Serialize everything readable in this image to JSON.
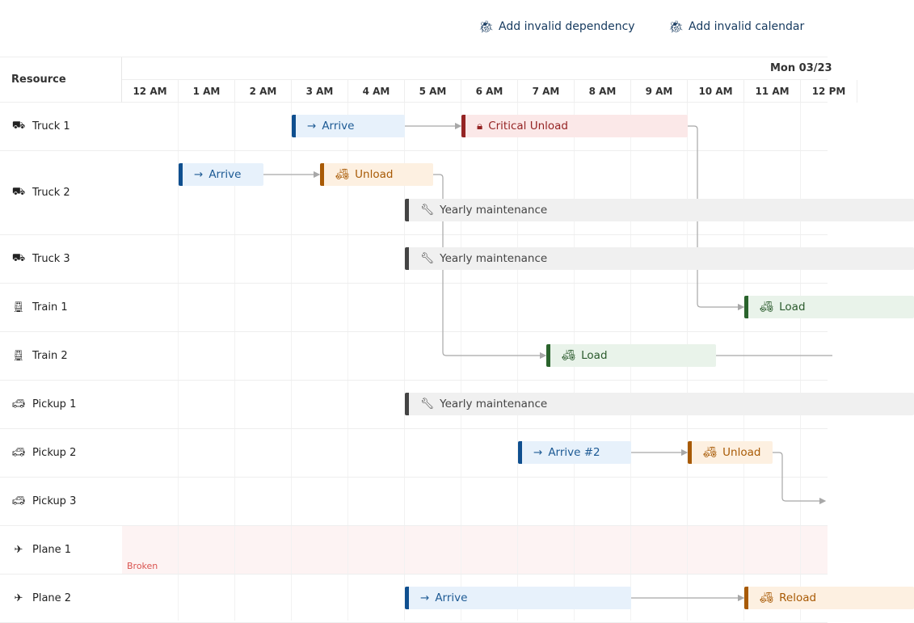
{
  "toolbar": {
    "buttons": [
      {
        "label": "Add invalid dependency",
        "icon": "bug-icon"
      },
      {
        "label": "Add invalid calendar",
        "icon": "bug-icon"
      }
    ]
  },
  "header": {
    "resource_label": "Resource",
    "day_label": "Mon 03/23",
    "hours": [
      "12 AM",
      "1 AM",
      "2 AM",
      "3 AM",
      "4 AM",
      "5 AM",
      "6 AM",
      "7 AM",
      "8 AM",
      "9 AM",
      "10 AM",
      "11 AM",
      "12 PM"
    ]
  },
  "resources": [
    {
      "name": "Truck 1",
      "icon": "truck-icon"
    },
    {
      "name": "Truck 2",
      "icon": "truck-icon"
    },
    {
      "name": "Truck 3",
      "icon": "truck-icon"
    },
    {
      "name": "Train 1",
      "icon": "train-icon"
    },
    {
      "name": "Train 2",
      "icon": "train-icon"
    },
    {
      "name": "Pickup 1",
      "icon": "car-icon"
    },
    {
      "name": "Pickup 2",
      "icon": "car-icon"
    },
    {
      "name": "Pickup 3",
      "icon": "car-icon"
    },
    {
      "name": "Plane 1",
      "icon": "plane-icon"
    },
    {
      "name": "Plane 2",
      "icon": "plane-icon"
    }
  ],
  "time_ranges": [
    {
      "resource": 8,
      "label": "Broken",
      "color": "#d9534f"
    }
  ],
  "event_styles": {
    "arrive": {
      "bg": "#e7f1fb",
      "bar": "#0f4f8f",
      "fg": "#1d5a94",
      "icon": "arrow-right-icon"
    },
    "critical": {
      "bg": "#fbe8e8",
      "bar": "#952424",
      "fg": "#952424",
      "icon": "lock-icon"
    },
    "unload": {
      "bg": "#fdf0e1",
      "bar": "#a85a05",
      "fg": "#a85a05",
      "icon": "bulldozer-icon"
    },
    "maintenance": {
      "bg": "#f0f0f0",
      "bar": "#444444",
      "fg": "#444444",
      "icon": "wrench-icon"
    },
    "load": {
      "bg": "#e9f3ea",
      "bar": "#2a632c",
      "fg": "#2a5a2c",
      "icon": "forklift-icon"
    }
  },
  "events": [
    {
      "resource": 0,
      "lane": 0,
      "start": 3,
      "end": 5,
      "name": "Arrive",
      "type": "arrive"
    },
    {
      "resource": 0,
      "lane": 0,
      "start": 6,
      "end": 10,
      "name": "Critical Unload",
      "type": "critical"
    },
    {
      "resource": 1,
      "lane": 0,
      "start": 1,
      "end": 2.5,
      "name": "Arrive",
      "type": "arrive"
    },
    {
      "resource": 1,
      "lane": 0,
      "start": 3.5,
      "end": 5.5,
      "name": "Unload",
      "type": "unload"
    },
    {
      "resource": 1,
      "lane": 1,
      "start": 5,
      "end": 14,
      "name": "Yearly maintenance",
      "type": "maintenance"
    },
    {
      "resource": 2,
      "lane": 0,
      "start": 5,
      "end": 14,
      "name": "Yearly maintenance",
      "type": "maintenance"
    },
    {
      "resource": 3,
      "lane": 0,
      "start": 11,
      "end": 14,
      "name": "Load",
      "type": "load"
    },
    {
      "resource": 4,
      "lane": 0,
      "start": 7.5,
      "end": 10.5,
      "name": "Load",
      "type": "load"
    },
    {
      "resource": 5,
      "lane": 0,
      "start": 5,
      "end": 14,
      "name": "Yearly maintenance",
      "type": "maintenance"
    },
    {
      "resource": 6,
      "lane": 0,
      "start": 7,
      "end": 9,
      "name": "Arrive #2",
      "type": "arrive"
    },
    {
      "resource": 6,
      "lane": 0,
      "start": 10,
      "end": 11.5,
      "name": "Unload",
      "type": "unload"
    },
    {
      "resource": 9,
      "lane": 0,
      "start": 5,
      "end": 9,
      "name": "Arrive",
      "type": "arrive"
    },
    {
      "resource": 9,
      "lane": 0,
      "start": 11,
      "end": 14,
      "name": "Reload",
      "type": "unload"
    }
  ],
  "dependencies": [
    {
      "from": 0,
      "to": 1
    },
    {
      "from": 1,
      "to": 6
    },
    {
      "from": 2,
      "to": 3
    },
    {
      "from": 3,
      "to": 7
    },
    {
      "from": 7,
      "to": null
    },
    {
      "from": 9,
      "to": 10
    },
    {
      "from": 10,
      "to": "pickup3"
    },
    {
      "from": 11,
      "to": 12
    }
  ]
}
